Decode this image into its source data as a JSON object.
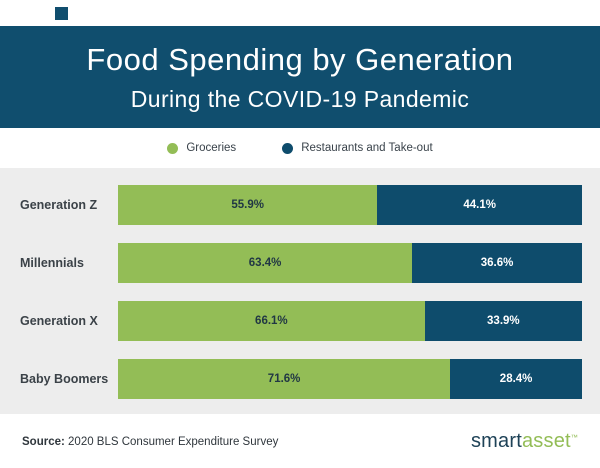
{
  "header": {
    "title": "Food Spending by Generation",
    "subtitle": "During the COVID-19 Pandemic",
    "background_color": "#104e6e"
  },
  "legend": [
    {
      "label": "Groceries",
      "color": "#93bd56"
    },
    {
      "label": "Restaurants and Take-out",
      "color": "#0e4c6c"
    }
  ],
  "chart_data": {
    "type": "bar",
    "orientation": "horizontal",
    "stacked": true,
    "title": "Food Spending by Generation During the COVID-19 Pandemic",
    "categories": [
      "Generation Z",
      "Millennials",
      "Generation X",
      "Baby Boomers"
    ],
    "series": [
      {
        "name": "Groceries",
        "color": "#93bd56",
        "values": [
          55.9,
          63.4,
          66.1,
          71.6
        ]
      },
      {
        "name": "Restaurants and Take-out",
        "color": "#0e4c6c",
        "values": [
          44.1,
          36.6,
          33.9,
          28.4
        ]
      }
    ],
    "value_suffix": "%",
    "xlim": [
      0,
      100
    ],
    "grid": false,
    "legend_position": "top",
    "plot_background": "#ededed"
  },
  "footer": {
    "source_label": "Source:",
    "source_text": " 2020 BLS Consumer Expenditure Survey",
    "logo": {
      "part1": "smart",
      "part2": "asset",
      "tm": "™"
    }
  }
}
